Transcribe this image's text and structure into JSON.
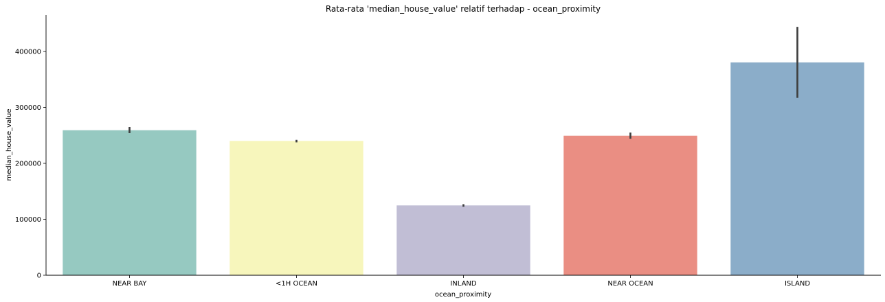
{
  "chart_data": {
    "type": "bar",
    "title": "Rata-rata 'median_house_value' relatif terhadap - ocean_proximity",
    "xlabel": "ocean_proximity",
    "ylabel": "median_house_value",
    "categories": [
      "NEAR BAY",
      "<1H OCEAN",
      "INLAND",
      "NEAR OCEAN",
      "ISLAND"
    ],
    "values": [
      259200,
      240100,
      124800,
      249400,
      380400
    ],
    "error_low": [
      254000,
      237500,
      122500,
      244000,
      317000
    ],
    "error_high": [
      265000,
      242000,
      127000,
      255000,
      444000
    ],
    "colors": [
      "#96c9c1",
      "#f7f6bc",
      "#c1bed5",
      "#ea8e83",
      "#8badc9"
    ],
    "error_color": "#3f3f3f",
    "ylim": [
      0,
      465000
    ],
    "yticks": [
      0,
      100000,
      200000,
      300000,
      400000
    ],
    "ytick_labels": [
      "0",
      "100000",
      "200000",
      "300000",
      "400000"
    ],
    "grid": false,
    "legend": "none"
  }
}
